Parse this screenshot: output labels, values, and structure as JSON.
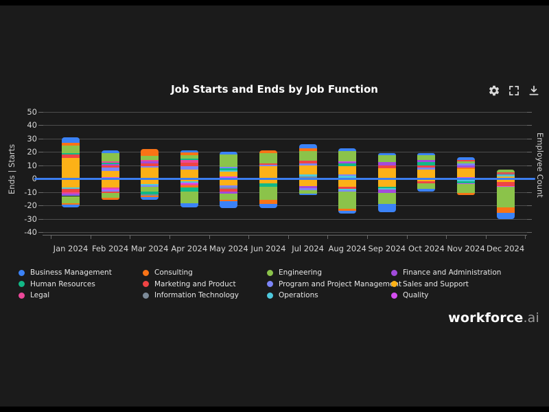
{
  "header": {
    "title": "Job Starts and Ends by Job Function",
    "toolbar": [
      {
        "name": "settings",
        "icon": "gear-icon"
      },
      {
        "name": "fullscreen",
        "icon": "fullscreen-icon"
      },
      {
        "name": "download",
        "icon": "download-icon"
      }
    ]
  },
  "logo": {
    "brand": "workforce",
    "suffix": ".ai"
  },
  "colors": {
    "zero_line": "#3c7ef0",
    "gridline": "#4e4e4e",
    "background": "#1b1b1b"
  },
  "chart_data": {
    "type": "bar",
    "stacked": true,
    "title": "Job Starts and Ends by Job Function",
    "x_categories": [
      "Jan 2024",
      "Feb 2024",
      "Mar 2024",
      "Apr 2024",
      "May 2024",
      "Jun 2024",
      "Jul 2024",
      "Aug 2024",
      "Sep 2024",
      "Oct 2024",
      "Nov 2024",
      "Dec 2024"
    ],
    "y_axis": {
      "label_left": "Ends | Starts",
      "label_right": "Employee Count",
      "min": -40,
      "max": 50,
      "tick_step": 10,
      "tick_labels": [
        "50",
        "40",
        "30",
        "20",
        "10",
        "0",
        "-10",
        "-20",
        "-30",
        "-40"
      ]
    },
    "legend_position": "bottom",
    "grid": true,
    "categories": [
      {
        "name": "Business Management",
        "color": "#3b82f6"
      },
      {
        "name": "Human Resources",
        "color": "#12b886"
      },
      {
        "name": "Legal",
        "color": "#ec4899"
      },
      {
        "name": "Consulting",
        "color": "#f97316"
      },
      {
        "name": "Marketing and Product",
        "color": "#ef4444"
      },
      {
        "name": "Information Technology",
        "color": "#7d8b99"
      },
      {
        "name": "Engineering",
        "color": "#8bc34a"
      },
      {
        "name": "Program and Project Management",
        "color": "#7c85f8"
      },
      {
        "name": "Operations",
        "color": "#4ec9dd"
      },
      {
        "name": "Finance and Administration",
        "color": "#a24bdb"
      },
      {
        "name": "Sales and Support",
        "color": "#fcb117"
      },
      {
        "name": "Quality",
        "color": "#d44ef0"
      }
    ],
    "months": [
      {
        "month": "Jan 2024",
        "starts": [
          [
            "Business Management",
            4
          ],
          [
            "Consulting",
            2
          ],
          [
            "Engineering",
            6
          ],
          [
            "Human Resources",
            1
          ],
          [
            "Marketing and Product",
            2.5
          ],
          [
            "Sales and Support",
            15.5
          ]
        ],
        "ends": [
          [
            "Sales and Support",
            6.5
          ],
          [
            "Operations",
            1
          ],
          [
            "Marketing and Product",
            2.5
          ],
          [
            "Legal",
            1
          ],
          [
            "Finance and Administration",
            1
          ],
          [
            "Program and Project Management",
            1
          ],
          [
            "Engineering",
            5.5
          ],
          [
            "Consulting",
            1
          ],
          [
            "Business Management",
            2
          ]
        ]
      },
      {
        "month": "Feb 2024",
        "starts": [
          [
            "Business Management",
            2
          ],
          [
            "Engineering",
            6
          ],
          [
            "Legal",
            1
          ],
          [
            "Human Resources",
            1
          ],
          [
            "Finance and Administration",
            1
          ],
          [
            "Marketing and Product",
            1.5
          ],
          [
            "Program and Project Management",
            2.5
          ],
          [
            "Sales and Support",
            5
          ],
          [
            "Quality",
            1
          ]
        ],
        "ends": [
          [
            "Sales and Support",
            6.5
          ],
          [
            "Legal",
            1
          ],
          [
            "Quality",
            1
          ],
          [
            "Program and Project Management",
            1
          ],
          [
            "Marketing and Product",
            1
          ],
          [
            "Engineering",
            4
          ],
          [
            "Consulting",
            1.5
          ]
        ]
      },
      {
        "month": "Mar 2024",
        "starts": [
          [
            "Consulting",
            5
          ],
          [
            "Engineering",
            3
          ],
          [
            "Legal",
            1
          ],
          [
            "Finance and Administration",
            1.5
          ],
          [
            "Marketing and Product",
            2
          ],
          [
            "Program and Project Management",
            1
          ],
          [
            "Sales and Support",
            8.5
          ]
        ],
        "ends": [
          [
            "Sales and Support",
            4
          ],
          [
            "Operations",
            1
          ],
          [
            "Program and Project Management",
            1
          ],
          [
            "Engineering",
            3.5
          ],
          [
            "Human Resources",
            2
          ],
          [
            "Information Technology",
            1
          ],
          [
            "Consulting",
            1.5
          ],
          [
            "Business Management",
            2
          ]
        ]
      },
      {
        "month": "Apr 2024",
        "starts": [
          [
            "Business Management",
            1.5
          ],
          [
            "Consulting",
            2
          ],
          [
            "Engineering",
            2.5
          ],
          [
            "Human Resources",
            1
          ],
          [
            "Legal",
            2
          ],
          [
            "Marketing and Product",
            2.5
          ],
          [
            "Program and Project Management",
            2.5
          ],
          [
            "Sales and Support",
            6.5
          ],
          [
            "Information Technology",
            0.5
          ]
        ],
        "ends": [
          [
            "Sales and Support",
            2
          ],
          [
            "Operations",
            1
          ],
          [
            "Quality",
            1
          ],
          [
            "Legal",
            1
          ],
          [
            "Consulting",
            1.5
          ],
          [
            "Human Resources",
            3
          ],
          [
            "Engineering",
            9
          ],
          [
            "Business Management",
            3
          ]
        ]
      },
      {
        "month": "May 2024",
        "starts": [
          [
            "Business Management",
            2
          ],
          [
            "Engineering",
            9
          ],
          [
            "Program and Project Management",
            1
          ],
          [
            "Human Resources",
            1.5
          ],
          [
            "Operations",
            1
          ],
          [
            "Sales and Support",
            4
          ],
          [
            "Quality",
            1.5
          ]
        ],
        "ends": [
          [
            "Sales and Support",
            5
          ],
          [
            "Program and Project Management",
            1.5
          ],
          [
            "Information Technology",
            1
          ],
          [
            "Marketing and Product",
            2
          ],
          [
            "Finance and Administration",
            1.5
          ],
          [
            "Engineering",
            5
          ],
          [
            "Consulting",
            1
          ],
          [
            "Business Management",
            5
          ]
        ]
      },
      {
        "month": "Jun 2024",
        "starts": [
          [
            "Consulting",
            2
          ],
          [
            "Engineering",
            7.5
          ],
          [
            "Marketing and Product",
            1
          ],
          [
            "Program and Project Management",
            1
          ],
          [
            "Sales and Support",
            9
          ],
          [
            "Information Technology",
            0.5
          ]
        ],
        "ends": [
          [
            "Sales and Support",
            3.5
          ],
          [
            "Human Resources",
            2.5
          ],
          [
            "Engineering",
            10
          ],
          [
            "Consulting",
            3
          ],
          [
            "Business Management",
            3
          ]
        ]
      },
      {
        "month": "Jul 2024",
        "starts": [
          [
            "Business Management",
            3.5
          ],
          [
            "Consulting",
            2
          ],
          [
            "Engineering",
            7
          ],
          [
            "Marketing and Product",
            2
          ],
          [
            "Program and Project Management",
            1.5
          ],
          [
            "Sales and Support",
            7
          ],
          [
            "Operations",
            1.5
          ],
          [
            "Information Technology",
            1.5
          ]
        ],
        "ends": [
          [
            "Sales and Support",
            5.5
          ],
          [
            "Finance and Administration",
            1.5
          ],
          [
            "Program and Project Management",
            1.5
          ],
          [
            "Engineering",
            2.5
          ],
          [
            "Business Management",
            1
          ]
        ]
      },
      {
        "month": "Aug 2024",
        "starts": [
          [
            "Business Management",
            2
          ],
          [
            "Engineering",
            7.5
          ],
          [
            "Quality",
            0.5
          ],
          [
            "Finance and Administration",
            1
          ],
          [
            "Human Resources",
            2
          ],
          [
            "Sales and Support",
            6.5
          ],
          [
            "Program and Project Management",
            1
          ],
          [
            "Operations",
            2
          ]
        ],
        "ends": [
          [
            "Sales and Support",
            6
          ],
          [
            "Marketing and Product",
            1.5
          ],
          [
            "Operations",
            1
          ],
          [
            "Program and Project Management",
            1
          ],
          [
            "Engineering",
            13
          ],
          [
            "Consulting",
            1.5
          ],
          [
            "Business Management",
            2
          ]
        ]
      },
      {
        "month": "Sep 2024",
        "starts": [
          [
            "Business Management",
            1.5
          ],
          [
            "Engineering",
            5
          ],
          [
            "Finance and Administration",
            2.5
          ],
          [
            "Marketing and Product",
            2
          ],
          [
            "Sales and Support",
            7.5
          ],
          [
            "Operations",
            0.5
          ]
        ],
        "ends": [
          [
            "Sales and Support",
            6
          ],
          [
            "Human Resources",
            1
          ],
          [
            "Operations",
            1
          ],
          [
            "Finance and Administration",
            2.5
          ],
          [
            "Engineering",
            8.5
          ],
          [
            "Business Management",
            6
          ]
        ]
      },
      {
        "month": "Oct 2024",
        "starts": [
          [
            "Business Management",
            1.5
          ],
          [
            "Engineering",
            3.5
          ],
          [
            "Finance and Administration",
            1.5
          ],
          [
            "Human Resources",
            2.5
          ],
          [
            "Marketing and Product",
            1.5
          ],
          [
            "Program and Project Management",
            1.5
          ],
          [
            "Sales and Support",
            7
          ]
        ],
        "ends": [
          [
            "Sales and Support",
            2
          ],
          [
            "Marketing and Product",
            1.5
          ],
          [
            "Engineering",
            4
          ],
          [
            "Business Management",
            2
          ]
        ]
      },
      {
        "month": "Nov 2024",
        "starts": [
          [
            "Business Management",
            2
          ],
          [
            "Marketing and Product",
            1
          ],
          [
            "Engineering",
            1.5
          ],
          [
            "Program and Project Management",
            1.5
          ],
          [
            "Finance and Administration",
            1.5
          ],
          [
            "Consulting",
            1
          ],
          [
            "Sales and Support",
            6.5
          ],
          [
            "Quality",
            1
          ]
        ],
        "ends": [
          [
            "Information Technology",
            1
          ],
          [
            "Operations",
            1
          ],
          [
            "Human Resources",
            1.5
          ],
          [
            "Quality",
            0.5
          ],
          [
            "Engineering",
            6.5
          ],
          [
            "Consulting",
            1.5
          ]
        ]
      },
      {
        "month": "Dec 2024",
        "starts": [
          [
            "Engineering",
            2.5
          ],
          [
            "Marketing and Product",
            1
          ],
          [
            "Information Technology",
            1
          ],
          [
            "Operations",
            1
          ],
          [
            "Sales and Support",
            1.5
          ]
        ],
        "ends": [
          [
            "Sales and Support",
            2.5
          ],
          [
            "Marketing and Product",
            3
          ],
          [
            "Quality",
            0.5
          ],
          [
            "Engineering",
            15.5
          ],
          [
            "Consulting",
            4
          ],
          [
            "Business Management",
            4.5
          ]
        ]
      }
    ]
  }
}
